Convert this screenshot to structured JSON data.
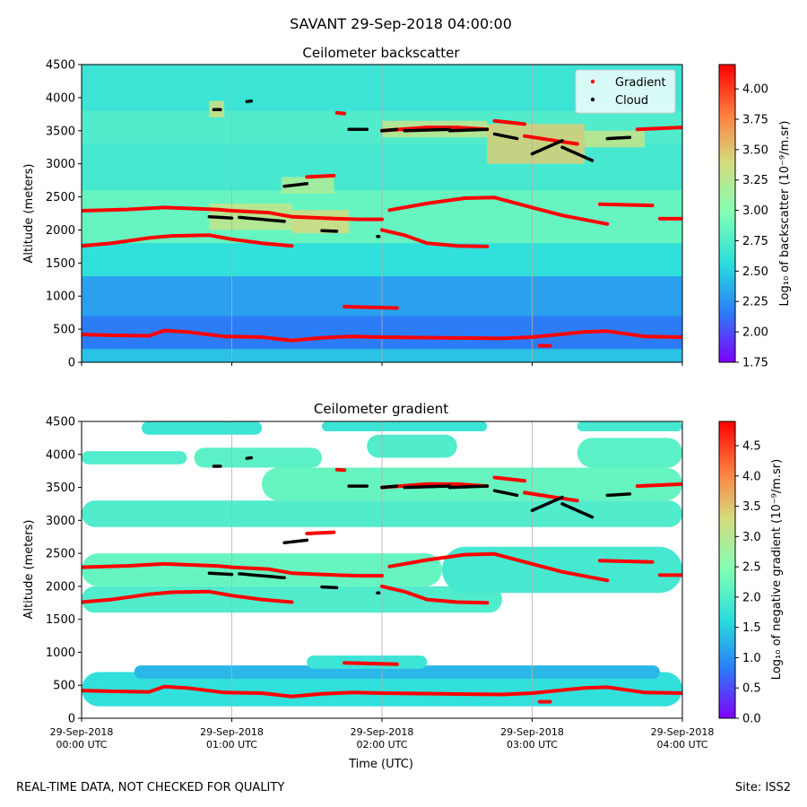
{
  "figure_title": "SAVANT 29-Sep-2018 04:00:00",
  "footer_left": "REAL-TIME DATA, NOT CHECKED FOR QUALITY",
  "footer_right": "Site: ISS2",
  "colors": {
    "gradient_marker": "#ff0000",
    "cloud_marker": "#000000",
    "colormap": [
      "#7f00ff",
      "#2a7ff8",
      "#2adddd",
      "#81ffb4",
      "#d4dd80",
      "#ff8040",
      "#ff0000"
    ]
  },
  "chart_data": [
    {
      "type": "heatmap",
      "title": "Ceilometer backscatter",
      "xlabel": "",
      "ylabel": "Altitude (meters)",
      "xlim": [
        0,
        4
      ],
      "ylim": [
        0,
        4500
      ],
      "x_ticks": [
        0,
        1,
        2,
        3,
        4
      ],
      "x_tick_labels": [],
      "y_ticks": [
        0,
        500,
        1000,
        1500,
        2000,
        2500,
        3000,
        3500,
        4000,
        4500
      ],
      "grid": "vertical",
      "colorbar": {
        "label": "Log₁₀ of backscatter (10⁻⁹/m.sr)",
        "range": [
          1.75,
          4.2
        ],
        "ticks": [
          "1.75",
          "2.00",
          "2.25",
          "2.50",
          "2.75",
          "3.00",
          "3.25",
          "3.50",
          "3.75",
          "4.00"
        ]
      },
      "legend": {
        "placement": "top-right",
        "entries": [
          "Gradient",
          "Cloud"
        ]
      },
      "background_bands": [
        {
          "y": [
            0,
            200
          ],
          "value": 2.45
        },
        {
          "y": [
            200,
            700
          ],
          "value": 2.15
        },
        {
          "y": [
            700,
            1300
          ],
          "value": 2.3
        },
        {
          "y": [
            1300,
            1800
          ],
          "value": 2.6
        },
        {
          "y": [
            1800,
            2600
          ],
          "value": 2.85
        },
        {
          "y": [
            2600,
            3300
          ],
          "value": 2.7
        },
        {
          "y": [
            3300,
            3800
          ],
          "value": 2.75
        },
        {
          "y": [
            3800,
            4500
          ],
          "value": 2.65
        }
      ],
      "cloud_patches": [
        {
          "x": [
            0.85,
            0.95
          ],
          "y": [
            3700,
            3950
          ],
          "value": 3.35
        },
        {
          "x": [
            1.33,
            1.68
          ],
          "y": [
            2550,
            2800
          ],
          "value": 3.2
        },
        {
          "x": [
            0.85,
            1.4
          ],
          "y": [
            2000,
            2400
          ],
          "value": 3.3
        },
        {
          "x": [
            1.4,
            1.78
          ],
          "y": [
            1950,
            2300
          ],
          "value": 3.4
        },
        {
          "x": [
            2.0,
            2.7
          ],
          "y": [
            3400,
            3650
          ],
          "value": 3.3
        },
        {
          "x": [
            2.7,
            3.35
          ],
          "y": [
            3000,
            3600
          ],
          "value": 3.45
        },
        {
          "x": [
            3.35,
            3.75
          ],
          "y": [
            3250,
            3500
          ],
          "value": 3.3
        }
      ],
      "gradient_layers": [
        {
          "x": [
            0,
            0.15,
            0.45,
            0.55,
            0.7,
            0.95,
            1.2,
            1.4,
            1.6,
            1.8,
            2.0,
            2.4,
            2.8,
            3.0,
            3.35,
            3.5,
            3.75,
            4.0
          ],
          "y": [
            420,
            410,
            400,
            480,
            460,
            390,
            380,
            330,
            370,
            390,
            380,
            370,
            360,
            380,
            460,
            470,
            390,
            380
          ]
        },
        {
          "x": [
            0,
            0.2,
            0.45,
            0.6,
            0.85,
            1.0,
            1.2,
            1.4
          ],
          "y": [
            1760,
            1800,
            1880,
            1910,
            1920,
            1860,
            1800,
            1760
          ]
        },
        {
          "x": [
            0,
            0.3,
            0.55,
            0.9,
            1.0,
            1.25,
            1.4,
            1.7,
            1.85,
            2.0
          ],
          "y": [
            2290,
            2310,
            2340,
            2310,
            2290,
            2260,
            2200,
            2170,
            2160,
            2160
          ]
        },
        {
          "x": [
            2.0,
            2.15,
            2.3,
            2.5,
            2.7
          ],
          "y": [
            2000,
            1920,
            1800,
            1760,
            1750
          ]
        },
        {
          "x": [
            2.05,
            2.3,
            2.55,
            2.75,
            3.0,
            3.2,
            3.5
          ],
          "y": [
            2300,
            2400,
            2480,
            2490,
            2340,
            2220,
            2090
          ]
        },
        {
          "x": [
            3.45,
            3.8
          ],
          "y": [
            2390,
            2370
          ]
        },
        {
          "x": [
            3.85,
            4.0
          ],
          "y": [
            2170,
            2170
          ]
        },
        {
          "x": [
            1.75,
            2.1
          ],
          "y": [
            840,
            820
          ]
        },
        {
          "x": [
            3.05,
            3.12
          ],
          "y": [
            250,
            250
          ]
        },
        {
          "x": [
            1.5,
            1.68
          ],
          "y": [
            2800,
            2820
          ]
        },
        {
          "x": [
            3.7,
            4.0
          ],
          "y": [
            3520,
            3550
          ]
        },
        {
          "x": [
            2.0,
            2.3,
            2.5,
            2.7
          ],
          "y": [
            3500,
            3550,
            3550,
            3520
          ]
        },
        {
          "x": [
            2.75,
            2.95
          ],
          "y": [
            3650,
            3600
          ]
        },
        {
          "x": [
            2.95,
            3.15,
            3.3
          ],
          "y": [
            3420,
            3350,
            3300
          ]
        },
        {
          "x": [
            1.7,
            1.75
          ],
          "y": [
            3770,
            3760
          ]
        }
      ],
      "cloud_bases": [
        {
          "x": [
            0.88,
            0.93
          ],
          "y": [
            3820,
            3820
          ]
        },
        {
          "x": [
            1.1,
            1.13
          ],
          "y": [
            3940,
            3950
          ]
        },
        {
          "x": [
            1.35,
            1.5
          ],
          "y": [
            2660,
            2700
          ]
        },
        {
          "x": [
            0.85,
            1.0
          ],
          "y": [
            2200,
            2180
          ]
        },
        {
          "x": [
            1.05,
            1.35
          ],
          "y": [
            2190,
            2130
          ]
        },
        {
          "x": [
            1.6,
            1.7
          ],
          "y": [
            1990,
            1980
          ]
        },
        {
          "x": [
            1.78,
            1.9
          ],
          "y": [
            3520,
            3520
          ]
        },
        {
          "x": [
            2.0,
            2.1
          ],
          "y": [
            3500,
            3520
          ]
        },
        {
          "x": [
            2.15,
            2.45
          ],
          "y": [
            3500,
            3520
          ]
        },
        {
          "x": [
            2.45,
            2.7
          ],
          "y": [
            3500,
            3520
          ]
        },
        {
          "x": [
            2.75,
            2.9
          ],
          "y": [
            3450,
            3380
          ]
        },
        {
          "x": [
            3.0,
            3.2
          ],
          "y": [
            3150,
            3350
          ]
        },
        {
          "x": [
            3.2,
            3.4
          ],
          "y": [
            3250,
            3050
          ]
        },
        {
          "x": [
            3.5,
            3.65
          ],
          "y": [
            3380,
            3400
          ]
        },
        {
          "x": [
            1.97,
            1.98
          ],
          "y": [
            1900,
            1900
          ]
        }
      ]
    },
    {
      "type": "heatmap",
      "title": "Ceilometer gradient",
      "xlabel": "Time (UTC)",
      "ylabel": "Altitude (meters)",
      "xlim": [
        0,
        4
      ],
      "ylim": [
        0,
        4500
      ],
      "x_ticks": [
        0,
        1,
        2,
        3,
        4
      ],
      "x_tick_labels": [
        [
          "29-Sep-2018",
          "00:00 UTC"
        ],
        [
          "29-Sep-2018",
          "01:00 UTC"
        ],
        [
          "29-Sep-2018",
          "02:00 UTC"
        ],
        [
          "29-Sep-2018",
          "03:00 UTC"
        ],
        [
          "29-Sep-2018",
          "04:00 UTC"
        ]
      ],
      "y_ticks": [
        0,
        500,
        1000,
        1500,
        2000,
        2500,
        3000,
        3500,
        4000,
        4500
      ],
      "grid": "vertical",
      "colorbar": {
        "label": "Log₁₀ of negative gradient (10⁻⁹/m.sr)",
        "range": [
          0.0,
          4.9
        ],
        "ticks": [
          "0.0",
          "0.5",
          "1.0",
          "1.5",
          "2.0",
          "2.5",
          "3.0",
          "3.5",
          "4.0",
          "4.5"
        ]
      },
      "gradient_bands": [
        {
          "x": [
            0.0,
            4.0
          ],
          "y": [
            180,
            700
          ],
          "value": 1.7
        },
        {
          "x": [
            0.35,
            3.85
          ],
          "y": [
            600,
            800
          ],
          "value": 1.3
        },
        {
          "x": [
            1.5,
            2.3
          ],
          "y": [
            750,
            950
          ],
          "value": 1.8
        },
        {
          "x": [
            0.0,
            2.8
          ],
          "y": [
            1600,
            2000
          ],
          "value": 2.0
        },
        {
          "x": [
            0.0,
            2.4
          ],
          "y": [
            2000,
            2500
          ],
          "value": 2.2
        },
        {
          "x": [
            2.4,
            4.0
          ],
          "y": [
            1900,
            2600
          ],
          "value": 1.9
        },
        {
          "x": [
            0.0,
            4.0
          ],
          "y": [
            2900,
            3300
          ],
          "value": 2.0
        },
        {
          "x": [
            1.2,
            4.0
          ],
          "y": [
            3300,
            3800
          ],
          "value": 2.2
        },
        {
          "x": [
            0.0,
            0.7
          ],
          "y": [
            3850,
            4050
          ],
          "value": 2.0
        },
        {
          "x": [
            0.75,
            1.6
          ],
          "y": [
            3800,
            4100
          ],
          "value": 2.1
        },
        {
          "x": [
            1.9,
            2.5
          ],
          "y": [
            3950,
            4300
          ],
          "value": 2.0
        },
        {
          "x": [
            3.3,
            4.0
          ],
          "y": [
            3800,
            4250
          ],
          "value": 2.1
        },
        {
          "x": [
            0.4,
            1.2
          ],
          "y": [
            4300,
            4500
          ],
          "value": 1.8
        },
        {
          "x": [
            1.6,
            2.7
          ],
          "y": [
            4350,
            4500
          ],
          "value": 1.8
        },
        {
          "x": [
            3.3,
            4.0
          ],
          "y": [
            4350,
            4500
          ],
          "value": 1.9
        }
      ]
    }
  ]
}
